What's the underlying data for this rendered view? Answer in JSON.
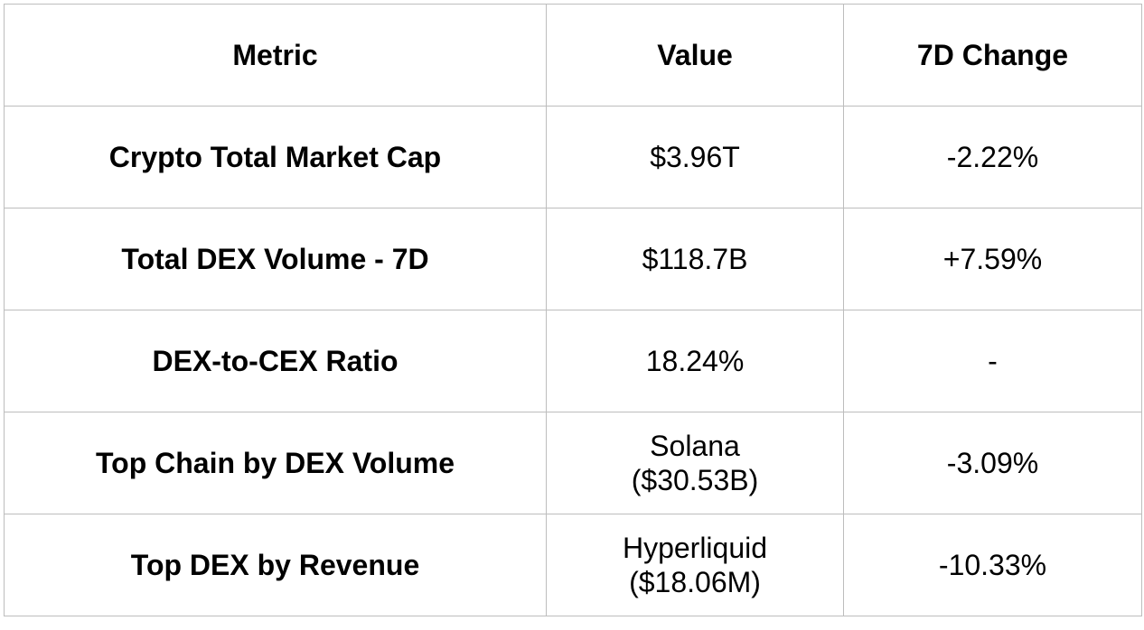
{
  "table": {
    "headers": {
      "metric": "Metric",
      "value": "Value",
      "change": "7D Change"
    },
    "rows": [
      {
        "metric": "Crypto Total Market Cap",
        "value": [
          "$3.96T"
        ],
        "change": "-2.22%"
      },
      {
        "metric": "Total DEX Volume - 7D",
        "value": [
          "$118.7B"
        ],
        "change": "+7.59%"
      },
      {
        "metric": "DEX-to-CEX Ratio",
        "value": [
          "18.24%"
        ],
        "change": "-"
      },
      {
        "metric": "Top Chain by DEX Volume",
        "value": [
          "Solana",
          "($30.53B)"
        ],
        "change": "-3.09%"
      },
      {
        "metric": "Top DEX by Revenue",
        "value": [
          "Hyperliquid",
          "($18.06M)"
        ],
        "change": "-10.33%"
      }
    ]
  }
}
